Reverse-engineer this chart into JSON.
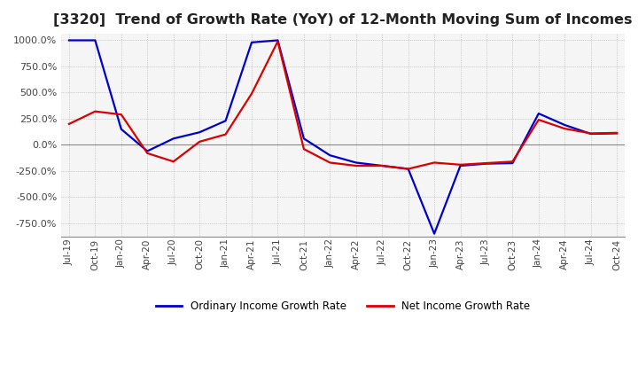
{
  "title": "[3320]  Trend of Growth Rate (YoY) of 12-Month Moving Sum of Incomes",
  "title_fontsize": 11.5,
  "background_color": "#ffffff",
  "plot_bg_color": "#f5f5f5",
  "grid_color": "#aaaaaa",
  "ylim": [
    -875,
    1062.5
  ],
  "yticks": [
    -750,
    -500,
    -250,
    0,
    250,
    500,
    750,
    1000
  ],
  "ordinary_color": "#0000cc",
  "net_color": "#dd0000",
  "legend_labels": [
    "Ordinary Income Growth Rate",
    "Net Income Growth Rate"
  ],
  "x_labels": [
    "Jul-19",
    "Oct-19",
    "Jan-20",
    "Apr-20",
    "Jul-20",
    "Oct-20",
    "Jan-21",
    "Apr-21",
    "Jul-21",
    "Oct-21",
    "Jan-22",
    "Apr-22",
    "Jul-22",
    "Oct-22",
    "Jan-23",
    "Apr-23",
    "Jul-23",
    "Oct-23",
    "Jan-24",
    "Apr-24",
    "Jul-24",
    "Oct-24"
  ],
  "ordinary_income": [
    1000,
    1000,
    150,
    -60,
    60,
    120,
    230,
    980,
    1000,
    60,
    -100,
    -170,
    -200,
    -230,
    -850,
    -200,
    -180,
    -175,
    300,
    190,
    105,
    110
  ],
  "net_income": [
    200,
    320,
    290,
    -80,
    -160,
    30,
    100,
    490,
    990,
    -40,
    -170,
    -200,
    -200,
    -230,
    -170,
    -190,
    -175,
    -160,
    240,
    155,
    110,
    115
  ]
}
